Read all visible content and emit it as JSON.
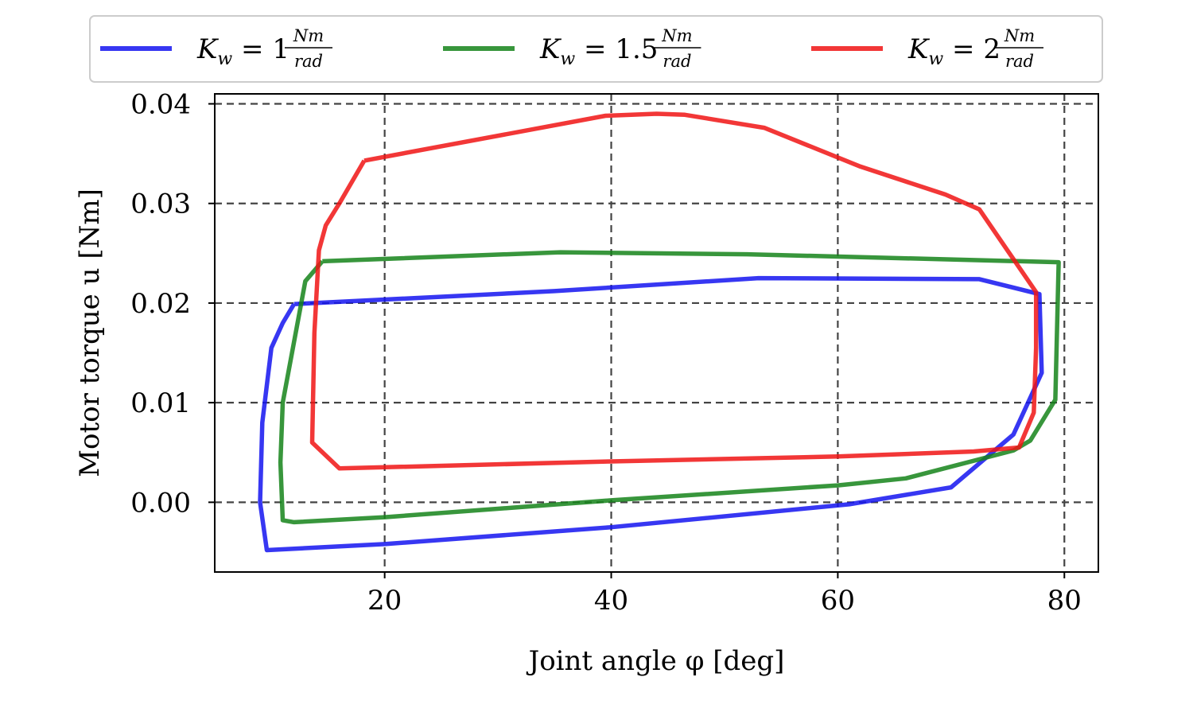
{
  "chart_data": {
    "type": "line",
    "xlabel": "Joint angle φ [deg]",
    "ylabel": "Motor torque u [Nm]",
    "xlim": [
      5,
      83
    ],
    "ylim": [
      -0.007,
      0.041
    ],
    "x_ticks": [
      20,
      40,
      60,
      80
    ],
    "x_tick_labels": [
      "20",
      "40",
      "60",
      "80"
    ],
    "y_ticks": [
      0.0,
      0.01,
      0.02,
      0.03,
      0.04
    ],
    "y_tick_labels": [
      "0.00",
      "0.01",
      "0.02",
      "0.03",
      "0.04"
    ],
    "grid": true,
    "legend_position": "top",
    "series": [
      {
        "name": "K_w = 1 Nm/rad",
        "legend_main": "K",
        "legend_sub": "w",
        "legend_eq": " = 1 ",
        "legend_num": "Nm",
        "legend_den": "rad",
        "color": "#1414f0",
        "x": [
          12.0,
          35.0,
          53.0,
          72.5,
          77.8,
          78.0,
          75.5,
          70.0,
          61.0,
          40.0,
          20.0,
          9.6,
          9.0,
          9.2,
          10.0,
          11.0,
          12.0
        ],
        "y": [
          0.0199,
          0.0212,
          0.0225,
          0.0224,
          0.0209,
          0.013,
          0.0068,
          0.0015,
          -0.0002,
          -0.0025,
          -0.0042,
          -0.0048,
          0.0,
          0.008,
          0.0155,
          0.018,
          0.0199
        ]
      },
      {
        "name": "K_w = 1.5 Nm/rad",
        "legend_main": "K",
        "legend_sub": "w",
        "legend_eq": " = 1.5 ",
        "legend_num": "Nm",
        "legend_den": "rad",
        "color": "#15841a",
        "x": [
          14.5,
          35.5,
          52.0,
          79.5,
          79.2,
          77.0,
          75.5,
          66.0,
          60.0,
          40.0,
          20.0,
          12.0,
          11.0,
          10.8,
          11.0,
          13.0,
          14.5
        ],
        "y": [
          0.0242,
          0.0251,
          0.0249,
          0.0241,
          0.0103,
          0.0062,
          0.0052,
          0.0024,
          0.0017,
          0.0002,
          -0.0015,
          -0.002,
          -0.0018,
          0.004,
          0.01,
          0.0222,
          0.0242
        ]
      },
      {
        "name": "K_w = 2 Nm/rad",
        "legend_main": "K",
        "legend_sub": "w",
        "legend_eq": " = 2 ",
        "legend_num": "Nm",
        "legend_den": "rad",
        "color": "#f01414",
        "x": [
          18.2,
          39.5,
          44.0,
          46.5,
          53.5,
          62.0,
          69.5,
          72.5,
          77.5,
          77.5,
          77.3,
          76.0,
          72.0,
          60.0,
          40.0,
          16.0,
          13.6,
          13.8,
          14.2,
          14.8,
          16.0,
          18.2
        ],
        "y": [
          0.0343,
          0.0388,
          0.039,
          0.0389,
          0.0376,
          0.0337,
          0.0309,
          0.0294,
          0.0211,
          0.0155,
          0.009,
          0.0055,
          0.0051,
          0.0046,
          0.0041,
          0.0034,
          0.006,
          0.017,
          0.0253,
          0.0278,
          0.03,
          0.0343
        ]
      }
    ]
  }
}
